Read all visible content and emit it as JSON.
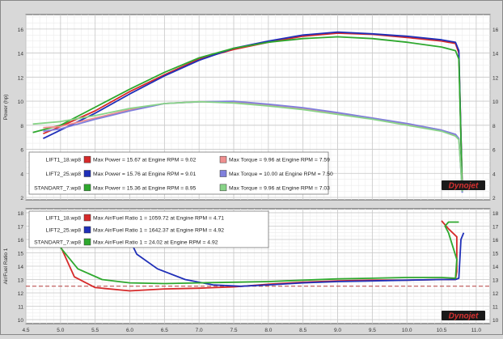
{
  "chart_data": [
    {
      "type": "line",
      "title": "",
      "xlabel": "",
      "ylabel": "Power (hp)",
      "xlim": [
        4.5,
        11.2
      ],
      "ylim": [
        1.8,
        17.2
      ],
      "x_ticks": [
        "4.5",
        "5.0",
        "5.5",
        "6.0",
        "6.5",
        "7.0",
        "7.5",
        "8.0",
        "8.5",
        "9.0",
        "9.5",
        "10.0",
        "10.5",
        "11.0"
      ],
      "y_ticks": [
        "2",
        "4",
        "6",
        "8",
        "10",
        "12",
        "14",
        "16"
      ],
      "grid": true,
      "legend_position": "bottom-left",
      "legend": [
        {
          "name": "LIFT1_18.wp8",
          "power": "Max Power = 15.67 at Engine RPM = 9.02",
          "torque": "Max Torque = 9.96 at Engine RPM = 7.59"
        },
        {
          "name": "LIFT2_25.wp8",
          "power": "Max Power = 15.76 at Engine RPM = 9.01",
          "torque": "Max Torque = 10.00 at Engine RPM = 7.50"
        },
        {
          "name": "STANDART_7.wp8",
          "power": "Max Power = 15.36 at Engine RPM = 8.95",
          "torque": "Max Torque = 9.96 at Engine RPM = 7.03"
        }
      ],
      "series": [
        {
          "color": "#d62a2a",
          "kind": "power",
          "x": [
            4.75,
            5.0,
            5.5,
            6.0,
            6.5,
            7.0,
            7.5,
            8.0,
            8.5,
            9.0,
            9.5,
            10.0,
            10.5,
            10.7,
            10.75,
            10.8
          ],
          "y": [
            7.3,
            7.9,
            9.2,
            10.8,
            12.2,
            13.5,
            14.3,
            14.9,
            15.4,
            15.65,
            15.55,
            15.3,
            15.0,
            14.8,
            14.0,
            2.6
          ]
        },
        {
          "color": "#1f2fb8",
          "kind": "power",
          "x": [
            4.75,
            5.0,
            5.5,
            6.0,
            6.5,
            7.0,
            7.5,
            8.0,
            8.5,
            9.0,
            9.5,
            10.0,
            10.5,
            10.7,
            10.75,
            10.8
          ],
          "y": [
            6.9,
            7.6,
            9.0,
            10.6,
            12.1,
            13.4,
            14.4,
            15.0,
            15.5,
            15.75,
            15.6,
            15.4,
            15.1,
            14.9,
            14.2,
            2.4
          ]
        },
        {
          "color": "#2ea82e",
          "kind": "power",
          "x": [
            4.6,
            5.0,
            5.5,
            6.0,
            6.5,
            7.0,
            7.5,
            8.0,
            8.5,
            9.0,
            9.5,
            10.0,
            10.5,
            10.7,
            10.75,
            10.8
          ],
          "y": [
            7.4,
            8.0,
            9.5,
            11.0,
            12.4,
            13.6,
            14.4,
            14.9,
            15.2,
            15.35,
            15.2,
            14.9,
            14.5,
            14.2,
            13.5,
            2.5
          ]
        },
        {
          "color": "#f09090",
          "kind": "torque",
          "x": [
            4.75,
            5.0,
            5.5,
            6.0,
            6.5,
            7.0,
            7.5,
            8.0,
            8.5,
            9.0,
            9.5,
            10.0,
            10.5,
            10.7,
            10.75,
            10.8
          ],
          "y": [
            7.8,
            7.9,
            8.6,
            9.3,
            9.8,
            9.95,
            9.95,
            9.7,
            9.4,
            9.0,
            8.6,
            8.1,
            7.6,
            7.2,
            6.9,
            2.6
          ]
        },
        {
          "color": "#8080dc",
          "kind": "torque",
          "x": [
            4.75,
            5.0,
            5.5,
            6.0,
            6.5,
            7.0,
            7.5,
            8.0,
            8.5,
            9.0,
            9.5,
            10.0,
            10.5,
            10.7,
            10.75,
            10.8
          ],
          "y": [
            7.5,
            7.7,
            8.5,
            9.2,
            9.8,
            9.95,
            10.0,
            9.75,
            9.45,
            9.05,
            8.6,
            8.15,
            7.6,
            7.25,
            6.9,
            2.4
          ]
        },
        {
          "color": "#88d488",
          "kind": "torque",
          "x": [
            4.6,
            5.0,
            5.5,
            6.0,
            6.5,
            7.0,
            7.5,
            8.0,
            8.5,
            9.0,
            9.5,
            10.0,
            10.5,
            10.7,
            10.75,
            10.8
          ],
          "y": [
            8.1,
            8.3,
            8.8,
            9.4,
            9.8,
            9.96,
            9.85,
            9.6,
            9.3,
            8.9,
            8.5,
            8.0,
            7.5,
            7.1,
            6.8,
            2.5
          ]
        }
      ],
      "watermark": "Dynojet"
    },
    {
      "type": "line",
      "title": "",
      "xlabel": "",
      "ylabel": "Air/Fuel Ratio 1",
      "xlim": [
        4.5,
        11.2
      ],
      "ylim": [
        9.7,
        18.3
      ],
      "x_ticks": [
        "4.5",
        "5.0",
        "5.5",
        "6.0",
        "6.5",
        "7.0",
        "7.5",
        "8.0",
        "8.5",
        "9.0",
        "9.5",
        "10.0",
        "10.5",
        "11.0"
      ],
      "y_ticks": [
        "10",
        "11",
        "12",
        "13",
        "14",
        "15",
        "16",
        "17",
        "18"
      ],
      "grid": true,
      "reference_line": 12.5,
      "legend_position": "top-left",
      "legend": [
        {
          "name": "LIFT1_18.wp8",
          "afr": "Max Air/Fuel Ratio 1 = 1059.72 at Engine RPM = 4.71"
        },
        {
          "name": "LIFT2_25.wp8",
          "afr": "Max Air/Fuel Ratio 1 = 1642.37 at Engine RPM = 4.92"
        },
        {
          "name": "STANDART_7.wp8",
          "afr": "Max Air/Fuel Ratio 1 = 24.02 at Engine RPM = 4.92"
        }
      ],
      "series": [
        {
          "color": "#d62a2a",
          "x": [
            5.0,
            5.2,
            5.5,
            6.0,
            6.5,
            7.0,
            7.5,
            8.0,
            8.5,
            9.0,
            9.5,
            10.0,
            10.5,
            10.7,
            10.72,
            10.72,
            10.6,
            10.5
          ],
          "y": [
            15.5,
            13.2,
            12.4,
            12.15,
            12.3,
            12.35,
            12.45,
            12.65,
            12.8,
            12.9,
            12.95,
            12.95,
            13.0,
            13.0,
            13.6,
            16.2,
            16.8,
            17.4
          ]
        },
        {
          "color": "#1f2fb8",
          "x": [
            5.95,
            6.1,
            6.4,
            6.8,
            7.2,
            7.6,
            8.0,
            8.5,
            9.0,
            9.5,
            10.0,
            10.5,
            10.7,
            10.75,
            10.78,
            10.82
          ],
          "y": [
            16.5,
            14.9,
            13.8,
            13.0,
            12.6,
            12.5,
            12.6,
            12.75,
            12.85,
            12.9,
            12.95,
            13.0,
            13.0,
            13.1,
            16.0,
            16.5
          ]
        },
        {
          "color": "#2ea82e",
          "x": [
            5.0,
            5.25,
            5.6,
            6.0,
            6.5,
            7.0,
            7.5,
            8.0,
            8.5,
            9.0,
            9.5,
            10.0,
            10.5,
            10.7,
            10.72,
            10.6,
            10.55,
            10.6,
            10.75
          ],
          "y": [
            15.4,
            13.8,
            13.0,
            12.75,
            12.7,
            12.75,
            12.8,
            12.85,
            12.95,
            13.05,
            13.1,
            13.15,
            13.15,
            13.1,
            14.5,
            16.5,
            17.0,
            17.3,
            17.3
          ]
        }
      ],
      "watermark": "Dynojet"
    }
  ]
}
